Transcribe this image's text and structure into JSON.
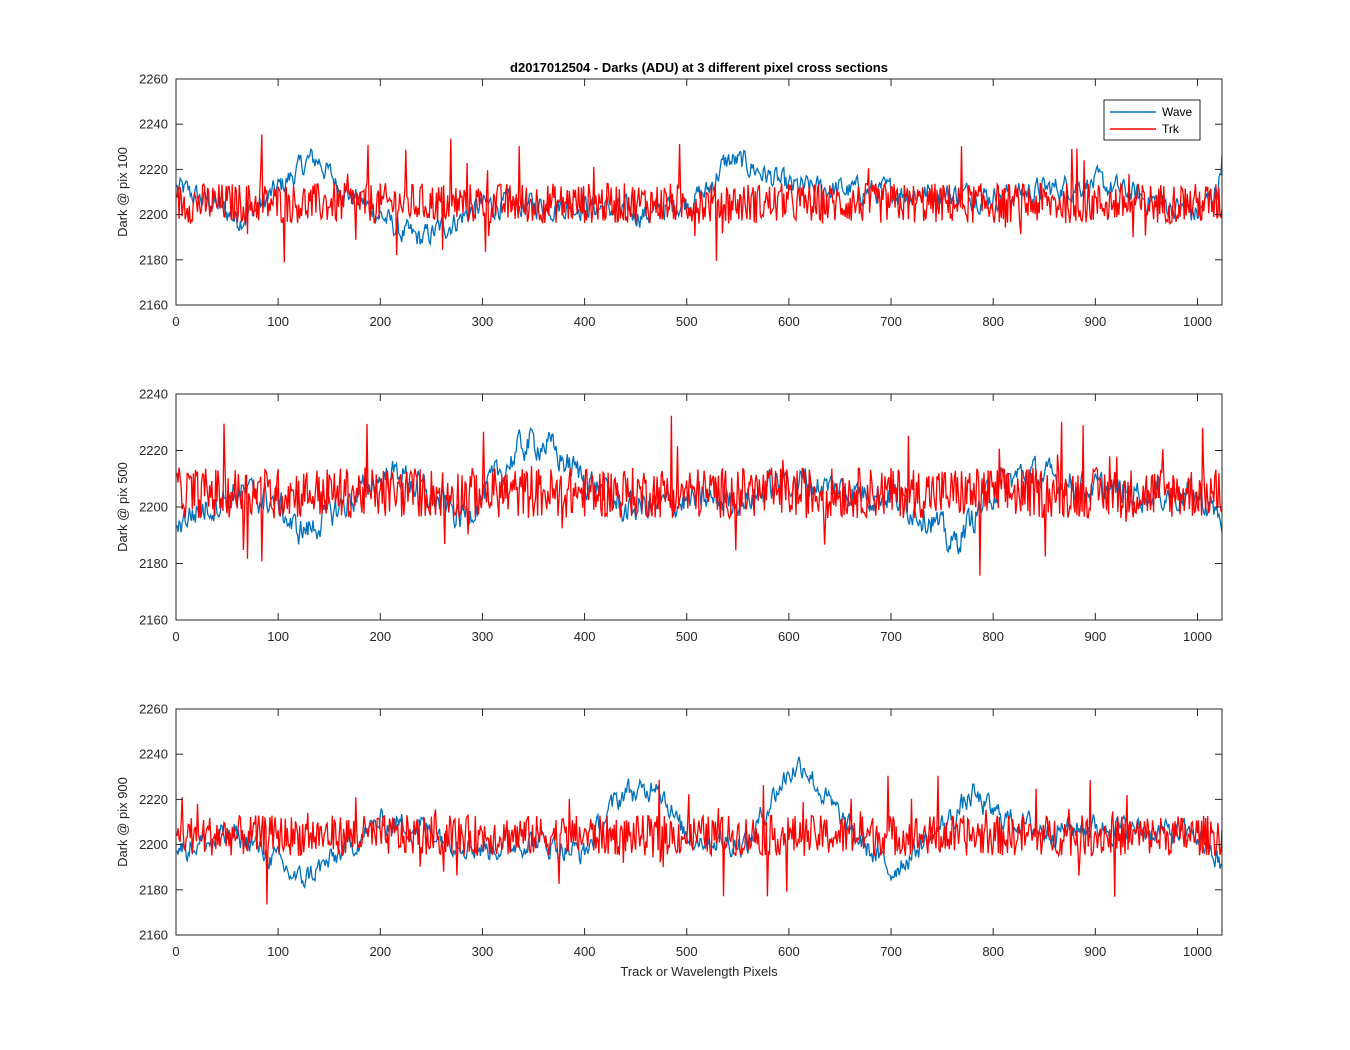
{
  "figure": {
    "title": "d2017012504 - Darks (ADU) at 3 different pixel cross sections",
    "xlabel": "Track or Wavelength Pixels"
  },
  "legend": {
    "entries": [
      "Wave",
      "Trk"
    ],
    "placement": "top-right"
  },
  "colors": {
    "wave": "#0072BD",
    "trk": "#FF0000",
    "axis": "#262626"
  },
  "chart_data": [
    {
      "type": "line",
      "ylabel": "Dark @ pix 100",
      "xlim": [
        0,
        1024
      ],
      "ylim": [
        2160,
        2260
      ],
      "xticks": [
        0,
        100,
        200,
        300,
        400,
        500,
        600,
        700,
        800,
        900,
        1000
      ],
      "yticks": [
        2160,
        2180,
        2200,
        2220,
        2240,
        2260
      ],
      "series": [
        {
          "name": "Wave",
          "x": [
            0,
            40,
            60,
            80,
            130,
            140,
            160,
            200,
            220,
            240,
            300,
            400,
            460,
            500,
            520,
            530,
            540,
            560,
            600,
            700,
            800,
            900,
            1000,
            1020,
            1024
          ],
          "values": [
            2212,
            2204,
            2198,
            2203,
            2224,
            2224,
            2212,
            2200,
            2192,
            2189,
            2204,
            2204,
            2200,
            2206,
            2210,
            2218,
            2224,
            2222,
            2212,
            2210,
            2208,
            2214,
            2200,
            2212,
            2226
          ]
        },
        {
          "name": "Trk",
          "x": [
            0,
            100,
            200,
            300,
            400,
            500,
            600,
            700,
            800,
            900,
            1000,
            1024
          ],
          "values": [
            2205,
            2205,
            2205,
            2205,
            2205,
            2205,
            2205,
            2205,
            2205,
            2205,
            2205,
            2205
          ]
        }
      ]
    },
    {
      "type": "line",
      "ylabel": "Dark @ pix 500",
      "xlim": [
        0,
        1024
      ],
      "ylim": [
        2160,
        2240
      ],
      "xticks": [
        0,
        100,
        200,
        300,
        400,
        500,
        600,
        700,
        800,
        900,
        1000
      ],
      "yticks": [
        2160,
        2180,
        2200,
        2220,
        2240
      ],
      "series": [
        {
          "name": "Wave",
          "x": [
            0,
            60,
            100,
            115,
            130,
            200,
            220,
            250,
            280,
            300,
            340,
            360,
            380,
            440,
            500,
            560,
            600,
            640,
            700,
            740,
            760,
            800,
            830,
            880,
            900,
            1000,
            1024
          ],
          "values": [
            2195,
            2205,
            2202,
            2192,
            2192,
            2210,
            2212,
            2203,
            2196,
            2204,
            2222,
            2223,
            2216,
            2199,
            2202,
            2203,
            2210,
            2207,
            2204,
            2196,
            2186,
            2206,
            2212,
            2208,
            2206,
            2204,
            2196
          ]
        },
        {
          "name": "Trk",
          "x": [
            0,
            100,
            200,
            300,
            400,
            500,
            600,
            700,
            800,
            900,
            1000,
            1024
          ],
          "values": [
            2205,
            2205,
            2205,
            2205,
            2205,
            2205,
            2205,
            2205,
            2205,
            2205,
            2205,
            2205
          ]
        }
      ]
    },
    {
      "type": "line",
      "ylabel": "Dark @ pix 900",
      "xlim": [
        0,
        1024
      ],
      "ylim": [
        2160,
        2260
      ],
      "xticks": [
        0,
        100,
        200,
        300,
        400,
        500,
        600,
        700,
        800,
        900,
        1000
      ],
      "yticks": [
        2160,
        2180,
        2200,
        2220,
        2240,
        2260
      ],
      "series": [
        {
          "name": "Wave",
          "x": [
            0,
            60,
            90,
            120,
            150,
            200,
            240,
            300,
            350,
            400,
            420,
            440,
            460,
            470,
            480,
            490,
            500,
            560,
            580,
            600,
            615,
            630,
            660,
            700,
            720,
            760,
            780,
            800,
            850,
            900,
            1000,
            1024
          ],
          "values": [
            2198,
            2204,
            2196,
            2184,
            2192,
            2210,
            2208,
            2198,
            2202,
            2196,
            2212,
            2224,
            2222,
            2230,
            2220,
            2210,
            2204,
            2200,
            2218,
            2232,
            2236,
            2224,
            2206,
            2188,
            2196,
            2212,
            2222,
            2214,
            2206,
            2208,
            2204,
            2190
          ]
        },
        {
          "name": "Trk",
          "x": [
            0,
            100,
            200,
            300,
            400,
            500,
            600,
            700,
            800,
            900,
            1000,
            1024
          ],
          "values": [
            2204,
            2204,
            2204,
            2204,
            2204,
            2204,
            2204,
            2204,
            2204,
            2204,
            2204,
            2204
          ]
        }
      ]
    }
  ]
}
